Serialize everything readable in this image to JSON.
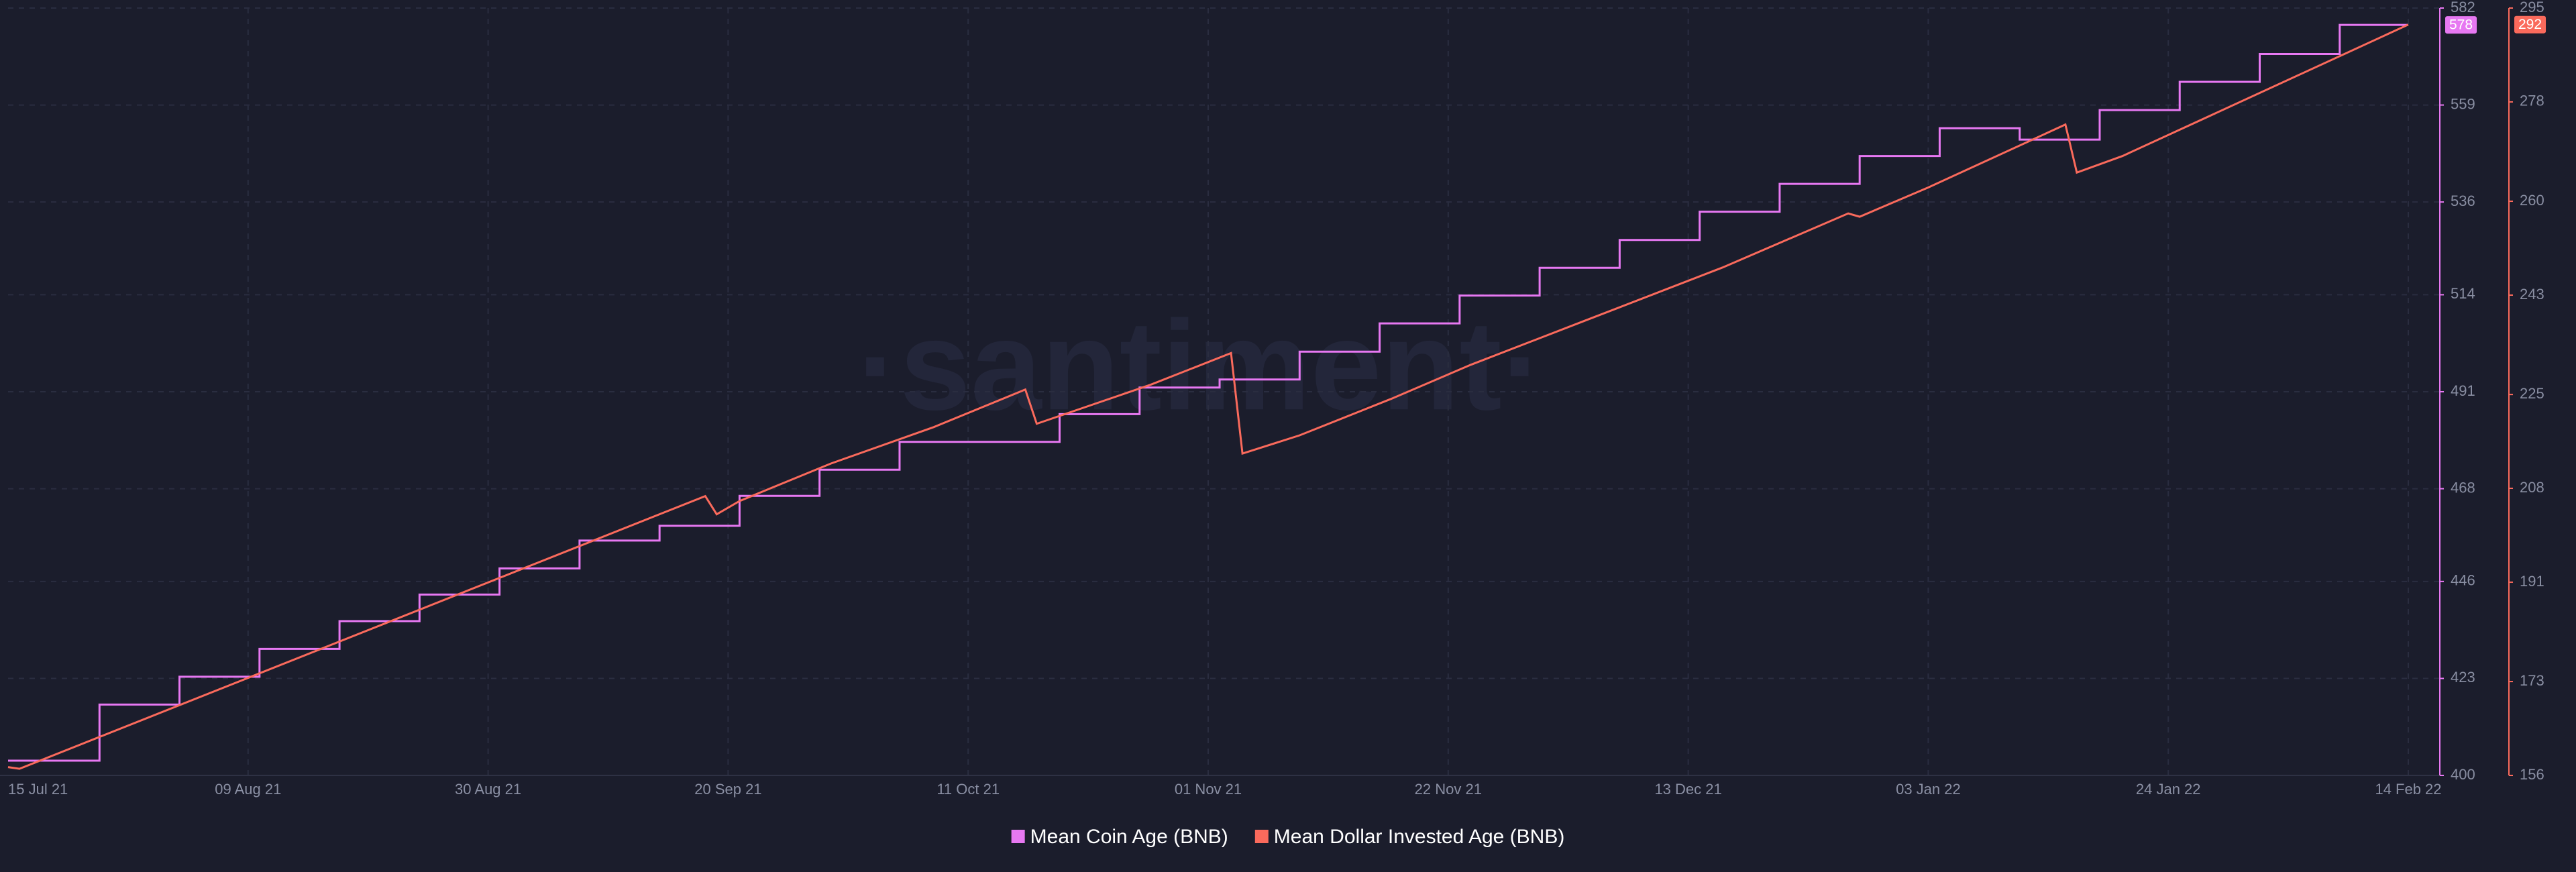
{
  "chart_data": {
    "type": "line",
    "watermark": "·santiment·",
    "xlim": [
      "2021-07-19",
      "2022-02-14"
    ],
    "xticks": [
      {
        "value": "2021-07-15",
        "label": "15 Jul 21"
      },
      {
        "value": "2021-08-09",
        "label": "09 Aug 21"
      },
      {
        "value": "2021-08-30",
        "label": "30 Aug 21"
      },
      {
        "value": "2021-09-20",
        "label": "20 Sep 21"
      },
      {
        "value": "2021-10-11",
        "label": "11 Oct 21"
      },
      {
        "value": "2021-11-01",
        "label": "01 Nov 21"
      },
      {
        "value": "2021-11-22",
        "label": "22 Nov 21"
      },
      {
        "value": "2021-12-13",
        "label": "13 Dec 21"
      },
      {
        "value": "2022-01-03",
        "label": "03 Jan 22"
      },
      {
        "value": "2022-01-24",
        "label": "24 Jan 22"
      },
      {
        "value": "2022-02-14",
        "label": "14 Feb 22"
      }
    ],
    "ylim": [
      400,
      582
    ],
    "yticks": [
      400,
      423,
      446,
      468,
      491,
      514,
      536,
      559,
      582
    ],
    "y2lim": [
      156,
      295
    ],
    "y2ticks": [
      156,
      173,
      191,
      208,
      225,
      243,
      260,
      278,
      295
    ],
    "grid": true,
    "legend": "bottom",
    "series": [
      {
        "name": "Mean Coin Age (BNB)",
        "color": "#e778f2",
        "step": true,
        "x": [
          "2021-07-19",
          "2021-07-27",
          "2021-08-03",
          "2021-08-10",
          "2021-08-17",
          "2021-08-24",
          "2021-08-31",
          "2021-09-07",
          "2021-09-14",
          "2021-09-21",
          "2021-09-28",
          "2021-10-05",
          "2021-10-19",
          "2021-10-26",
          "2021-11-02",
          "2021-11-09",
          "2021-11-16",
          "2021-11-23",
          "2021-11-30",
          "2021-12-07",
          "2021-12-14",
          "2021-12-21",
          "2021-12-28",
          "2022-01-04",
          "2022-01-11",
          "2022-01-18",
          "2022-01-25",
          "2022-02-01",
          "2022-02-08",
          "2022-02-14"
        ],
        "values": [
          403.5,
          416.8,
          423.4,
          430.0,
          436.6,
          442.9,
          449.1,
          455.7,
          459.2,
          466.3,
          472.5,
          479.1,
          485.7,
          492.0,
          493.9,
          500.5,
          507.2,
          513.8,
          520.4,
          527.0,
          533.7,
          540.3,
          546.9,
          553.5,
          550.8,
          557.8,
          564.5,
          571.1,
          578,
          578
        ]
      },
      {
        "name": "Mean Dollar Invested Age (BNB)",
        "color": "#fa6a5c",
        "axis": "y2",
        "x": [
          "2021-07-19",
          "2021-07-20",
          "2021-09-18",
          "2021-09-19",
          "2021-09-21",
          "2021-09-29",
          "2021-10-08",
          "2021-10-16",
          "2021-10-17",
          "2021-10-27",
          "2021-11-03",
          "2021-11-04",
          "2021-11-09",
          "2021-11-17",
          "2021-11-24",
          "2021-12-04",
          "2021-12-16",
          "2021-12-27",
          "2021-12-28",
          "2022-01-03",
          "2022-01-15",
          "2022-01-16",
          "2022-01-20",
          "2022-02-14"
        ],
        "values": [
          157.5,
          157.2,
          206.6,
          203.3,
          205.7,
          212.5,
          219.1,
          225.9,
          219.7,
          226.8,
          232.5,
          214.3,
          217.6,
          224.2,
          230.4,
          238.4,
          248.0,
          257.8,
          257.2,
          262.5,
          273.9,
          265.2,
          268.2,
          292
        ]
      }
    ]
  }
}
